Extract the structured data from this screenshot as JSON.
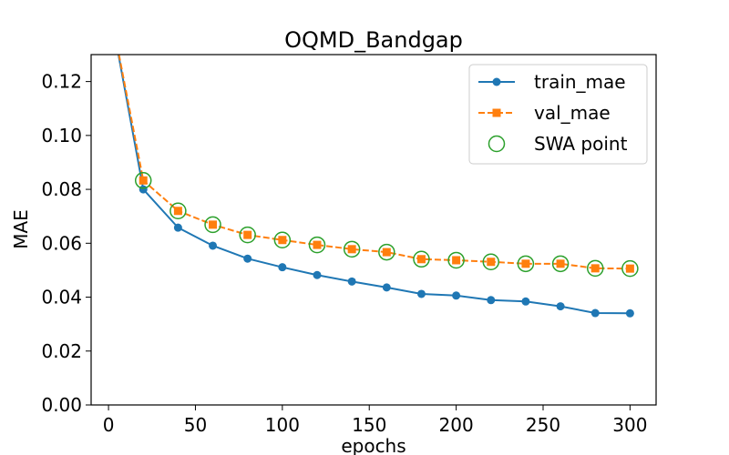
{
  "chart_data": {
    "type": "line",
    "title": "OQMD_Bandgap",
    "xlabel": "epochs",
    "ylabel": "MAE",
    "xlim": [
      -10,
      315
    ],
    "ylim": [
      0.0,
      0.13
    ],
    "xticks": [
      0,
      50,
      100,
      150,
      200,
      250,
      300
    ],
    "yticks": [
      0.0,
      0.02,
      0.04,
      0.06,
      0.08,
      0.1,
      0.12
    ],
    "xtick_labels": [
      "0",
      "50",
      "100",
      "150",
      "200",
      "250",
      "300"
    ],
    "ytick_labels": [
      "0.00",
      "0.02",
      "0.04",
      "0.06",
      "0.08",
      "0.10",
      "0.12"
    ],
    "grid": false,
    "legend_position": "top-right",
    "legend": [
      "train_mae",
      "val_mae",
      "SWA point"
    ],
    "series": [
      {
        "name": "train_mae",
        "color": "#1f77b4",
        "style": "solid",
        "marker": "circle",
        "x": [
          0,
          20,
          40,
          60,
          80,
          100,
          120,
          140,
          160,
          180,
          200,
          220,
          240,
          260,
          280,
          300
        ],
        "y": [
          0.15,
          0.08,
          0.0658,
          0.0591,
          0.0543,
          0.0511,
          0.0482,
          0.0458,
          0.0436,
          0.0412,
          0.0406,
          0.0389,
          0.0384,
          0.0366,
          0.0341,
          0.034
        ],
        "marker_start_index": 1
      },
      {
        "name": "val_mae",
        "color": "#ff7f0e",
        "style": "dashed",
        "marker": "square",
        "x": [
          0,
          20,
          40,
          60,
          80,
          100,
          120,
          140,
          160,
          180,
          200,
          220,
          240,
          260,
          280,
          300
        ],
        "y": [
          0.15,
          0.0833,
          0.072,
          0.0669,
          0.0631,
          0.0612,
          0.0594,
          0.0578,
          0.0567,
          0.0541,
          0.0537,
          0.0531,
          0.0524,
          0.0524,
          0.0507,
          0.0506
        ],
        "marker_start_index": 1
      },
      {
        "name": "SWA point",
        "color": "#2ca02c",
        "style": "none",
        "marker": "hollow-circle",
        "x": [
          20,
          40,
          60,
          80,
          100,
          120,
          140,
          160,
          180,
          200,
          220,
          240,
          260,
          280,
          300
        ],
        "y": [
          0.0833,
          0.072,
          0.0669,
          0.0631,
          0.0612,
          0.0594,
          0.0578,
          0.0567,
          0.0541,
          0.0537,
          0.0531,
          0.0524,
          0.0524,
          0.0507,
          0.0506
        ]
      }
    ]
  }
}
